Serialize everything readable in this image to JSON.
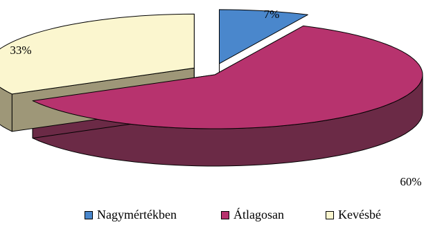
{
  "chart_data": {
    "type": "pie",
    "title": "",
    "slices": [
      {
        "label": "Nagymértékben",
        "value": 7,
        "value_label": "7%",
        "color": "#4A87CC",
        "side_color": "#5E5EA8"
      },
      {
        "label": "Átlagosan",
        "value": 60,
        "value_label": "60%",
        "color": "#B7336E",
        "side_color": "#6B2A46"
      },
      {
        "label": "Kevésbé",
        "value": 33,
        "value_label": "33%",
        "color": "#FBF6CF",
        "side_color": "#9E9778"
      }
    ],
    "exploded": true,
    "three_d": true,
    "legend_position": "bottom"
  }
}
